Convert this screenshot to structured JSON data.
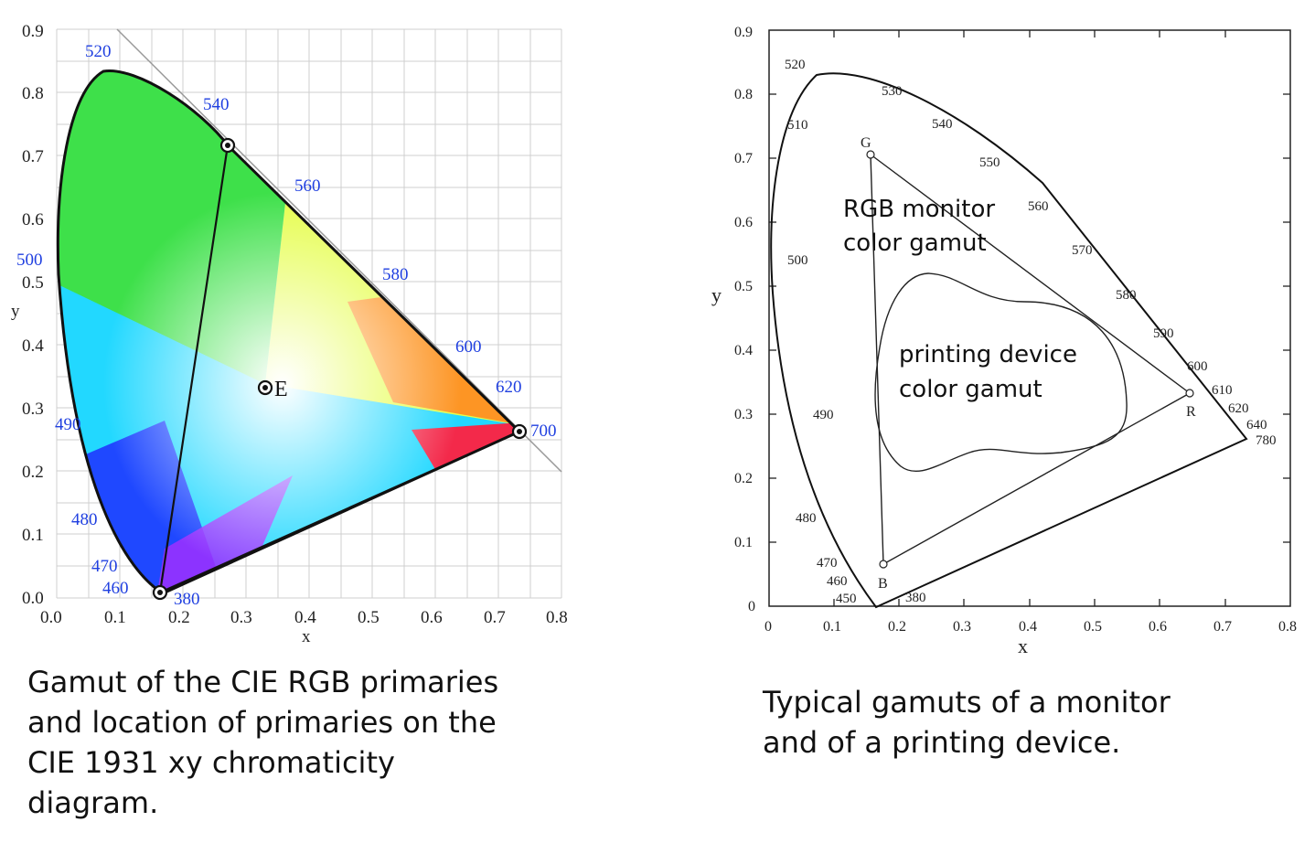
{
  "left_diagram": {
    "ylabel": "y",
    "xlabel": "x",
    "x_ticks": [
      "0.0",
      "0.1",
      "0.2",
      "0.3",
      "0.4",
      "0.5",
      "0.6",
      "0.7",
      "0.8"
    ],
    "y_ticks": [
      "0.0",
      "0.1",
      "0.2",
      "0.3",
      "0.4",
      "0.5",
      "0.6",
      "0.7",
      "0.8",
      "0.9"
    ],
    "wavelength_labels": [
      "520",
      "540",
      "560",
      "580",
      "600",
      "620",
      "700",
      "500",
      "490",
      "480",
      "470",
      "460",
      "380"
    ],
    "white_point_label": "E",
    "label_color": "#1f3fe0",
    "caption": [
      "Gamut of the CIE RGB primaries",
      "and location of primaries on the",
      "CIE 1931 xy chromaticity",
      "diagram."
    ]
  },
  "right_diagram": {
    "ylabel": "y",
    "xlabel": "x",
    "x_ticks": [
      "0",
      "0.1",
      "0.2",
      "0.3",
      "0.4",
      "0.5",
      "0.6",
      "0.7",
      "0.8"
    ],
    "y_ticks": [
      "0",
      "0.1",
      "0.2",
      "0.3",
      "0.4",
      "0.5",
      "0.6",
      "0.7",
      "0.8",
      "0.9"
    ],
    "wavelength_labels": [
      "520",
      "530",
      "540",
      "550",
      "560",
      "570",
      "580",
      "590",
      "600",
      "610",
      "620",
      "640",
      "780",
      "510",
      "500",
      "490",
      "480",
      "470",
      "460",
      "450",
      "380"
    ],
    "primary_labels": [
      "G",
      "R",
      "B"
    ],
    "monitor_gamut_label": [
      "RGB monitor",
      "color gamut"
    ],
    "printer_gamut_label": [
      "printing device",
      "color gamut"
    ],
    "caption": [
      "Typical gamuts of a monitor",
      "and of a printing device."
    ]
  }
}
